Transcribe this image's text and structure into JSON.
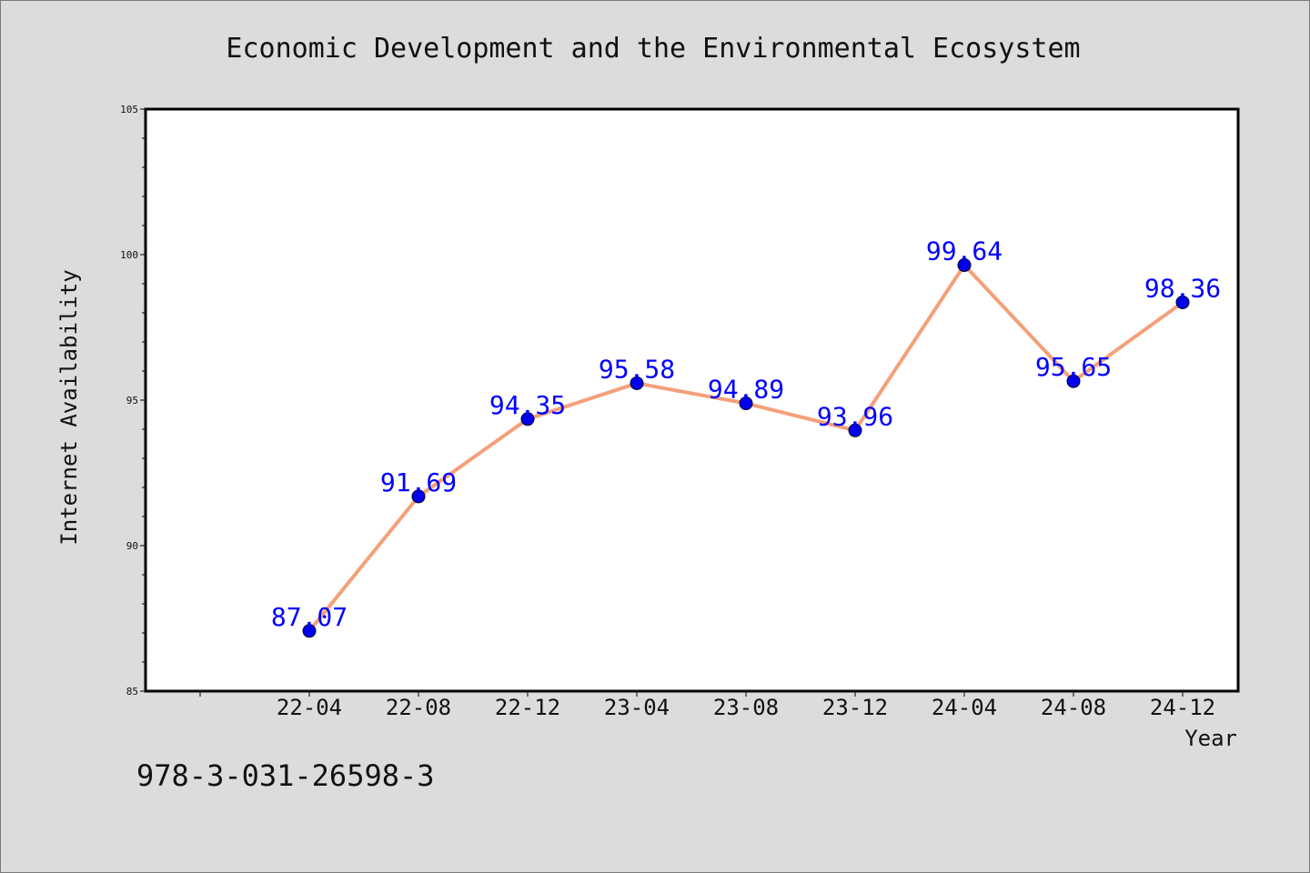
{
  "chart_data": {
    "type": "line",
    "title": "Economic Development and the Environmental Ecosystem",
    "xlabel": "Year",
    "ylabel": "Internet Availability",
    "categories": [
      "22-04",
      "22-08",
      "22-12",
      "23-04",
      "23-08",
      "23-12",
      "24-04",
      "24-08",
      "24-12"
    ],
    "series": [
      {
        "values": [
          87.07,
          91.69,
          94.35,
          95.58,
          94.89,
          93.96,
          99.64,
          95.65,
          98.36
        ],
        "line_color": "#f4a07a",
        "marker_color": "#0000ee"
      }
    ],
    "data_labels": [
      "87.07",
      "91.69",
      "94.35",
      "95.58",
      "94.89",
      "93.96",
      "99.64",
      "95.65",
      "98.36"
    ],
    "ylim": [
      85,
      105
    ],
    "yticks": [
      "85",
      "90",
      "95",
      "100",
      "105"
    ],
    "grid": false,
    "legend": "none"
  },
  "footer": {
    "isbn": "978-3-031-26598-3"
  }
}
